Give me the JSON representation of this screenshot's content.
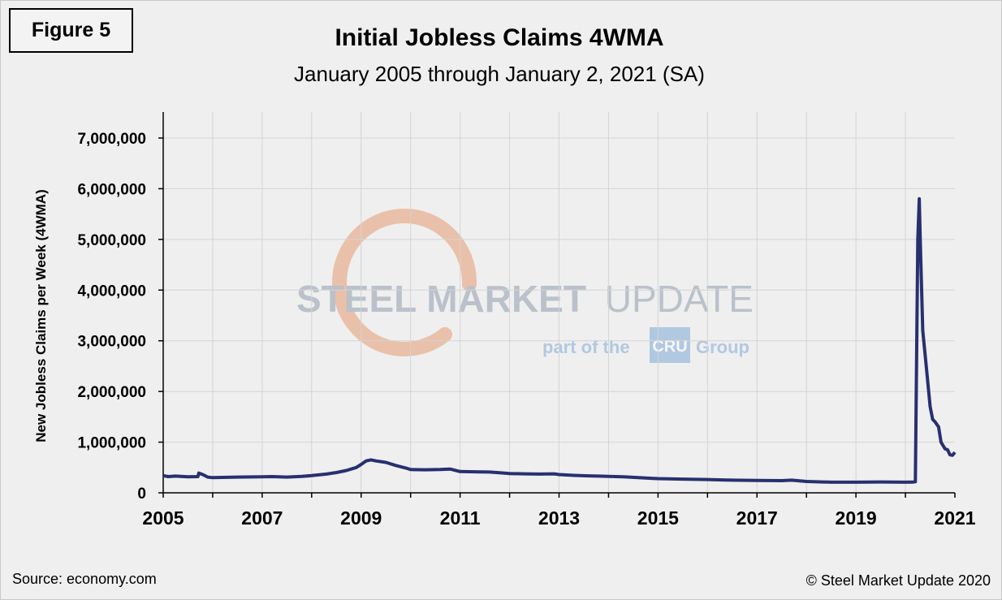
{
  "figure_label": "Figure 5",
  "watermark": {
    "main_bold": "STEEL MARKET",
    "main_light": "UPDATE",
    "sub_left": "part of the",
    "sub_logo": "CRU",
    "sub_right": "Group",
    "colors": {
      "gray": "#8f9cac",
      "blue": "#7fa9d6",
      "arc": "#e59a70"
    }
  },
  "footer": {
    "source": "Source: economy.com",
    "copyright": "© Steel Market Update 2020"
  },
  "chart_data": {
    "type": "line",
    "title": "Initial Jobless Claims 4WMA",
    "subtitle": "January 2005 through January 2, 2021 (SA)",
    "xlabel": "",
    "ylabel": "New Jobless Claims per Week (4WMA)",
    "xlim": [
      2005,
      2021
    ],
    "ylim": [
      0,
      7000000
    ],
    "grid": true,
    "line_color": "#27306f",
    "x_ticks": [
      2005,
      2007,
      2009,
      2011,
      2013,
      2015,
      2017,
      2019,
      2021
    ],
    "y_ticks": [
      0,
      1000000,
      2000000,
      3000000,
      4000000,
      5000000,
      6000000,
      7000000
    ],
    "y_tick_labels": [
      "0",
      "1,000,000",
      "2,000,000",
      "3,000,000",
      "4,000,000",
      "5,000,000",
      "6,000,000",
      "7,000,000"
    ],
    "series": [
      {
        "x": [
          2005.0,
          2005.1,
          2005.25,
          2005.5,
          2005.7,
          2005.72,
          2005.8,
          2005.9,
          2006.0,
          2006.2,
          2006.5,
          2007.0,
          2007.2,
          2007.5,
          2007.8,
          2008.0,
          2008.3,
          2008.5,
          2008.7,
          2008.9,
          2009.0,
          2009.1,
          2009.2,
          2009.3,
          2009.5,
          2009.7,
          2009.9,
          2010.0,
          2010.3,
          2010.6,
          2010.8,
          2011.0,
          2011.3,
          2011.6,
          2011.9,
          2012.0,
          2012.3,
          2012.6,
          2012.9,
          2013.0,
          2013.3,
          2013.6,
          2013.8,
          2014.0,
          2014.3,
          2014.6,
          2014.9,
          2015.0,
          2015.5,
          2016.0,
          2016.5,
          2017.0,
          2017.5,
          2017.7,
          2018.0,
          2018.5,
          2019.0,
          2019.5,
          2020.0,
          2020.15,
          2020.2,
          2020.25,
          2020.28,
          2020.3,
          2020.35,
          2020.42,
          2020.5,
          2020.55,
          2020.6,
          2020.67,
          2020.72,
          2020.8,
          2020.85,
          2020.9,
          2020.95,
          2021.0
        ],
        "y": [
          340000,
          320000,
          330000,
          315000,
          320000,
          390000,
          360000,
          310000,
          300000,
          305000,
          310000,
          315000,
          320000,
          310000,
          325000,
          340000,
          370000,
          400000,
          440000,
          500000,
          560000,
          630000,
          650000,
          630000,
          600000,
          540000,
          490000,
          460000,
          455000,
          460000,
          470000,
          420000,
          415000,
          410000,
          390000,
          380000,
          375000,
          370000,
          375000,
          360000,
          345000,
          335000,
          330000,
          325000,
          315000,
          300000,
          285000,
          280000,
          270000,
          262000,
          250000,
          245000,
          240000,
          250000,
          225000,
          210000,
          210000,
          215000,
          210000,
          212000,
          220000,
          5000000,
          5800000,
          5000000,
          3200000,
          2500000,
          1700000,
          1450000,
          1400000,
          1300000,
          1000000,
          870000,
          850000,
          750000,
          740000,
          800000
        ]
      }
    ]
  }
}
